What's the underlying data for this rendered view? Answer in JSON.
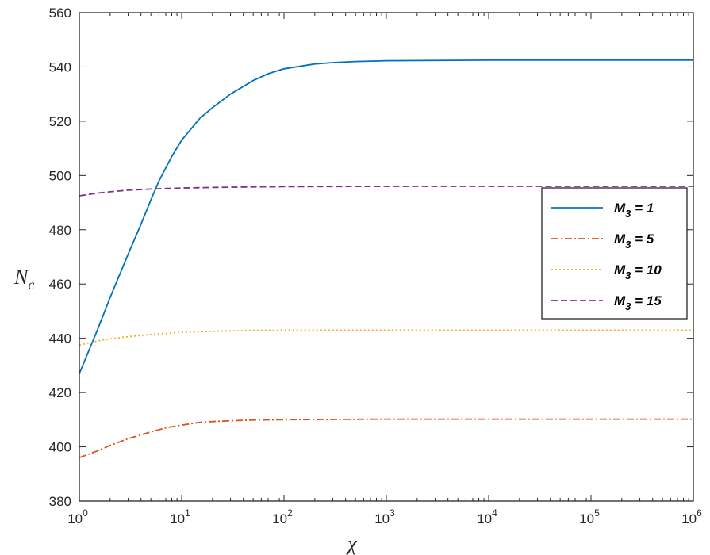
{
  "chart_data": {
    "type": "line",
    "xlabel": "χ",
    "ylabel": "N",
    "ylabel_sub": "c",
    "xscale": "log",
    "xlim": [
      1,
      1000000
    ],
    "ylim": [
      380,
      560
    ],
    "grid": false,
    "legend_position": "right",
    "x_ticks": [
      {
        "value": 1,
        "base": "10",
        "exp": "0"
      },
      {
        "value": 10,
        "base": "10",
        "exp": "1"
      },
      {
        "value": 100,
        "base": "10",
        "exp": "2"
      },
      {
        "value": 1000,
        "base": "10",
        "exp": "3"
      },
      {
        "value": 10000,
        "base": "10",
        "exp": "4"
      },
      {
        "value": 100000,
        "base": "10",
        "exp": "5"
      },
      {
        "value": 1000000,
        "base": "10",
        "exp": "6"
      }
    ],
    "y_ticks": [
      380,
      400,
      420,
      440,
      460,
      480,
      500,
      520,
      540,
      560
    ],
    "series": [
      {
        "legend_label": "M",
        "legend_sub": "3",
        "legend_rest": " = 1",
        "color": "#0072BD",
        "dash": "solid",
        "x": [
          1,
          1.5,
          2,
          3,
          4,
          5,
          6,
          8,
          10,
          15,
          20,
          30,
          50,
          70,
          100,
          200,
          300,
          500,
          1000,
          10000,
          100000,
          1000000
        ],
        "y": [
          427,
          443,
          455,
          471,
          482,
          491,
          498,
          507,
          513,
          521,
          525,
          530,
          535,
          537.5,
          539.3,
          541.1,
          541.6,
          542,
          542.3,
          542.5,
          542.5,
          542.5
        ]
      },
      {
        "legend_label": "M",
        "legend_sub": "3",
        "legend_rest": "  = 5",
        "color": "#D95319",
        "dash": "dashdot",
        "x": [
          1,
          1.5,
          2,
          3,
          5,
          7,
          10,
          15,
          20,
          30,
          50,
          100,
          1000,
          10000,
          100000,
          1000000
        ],
        "y": [
          396,
          398.5,
          400.5,
          403,
          405.5,
          407,
          408,
          409,
          409.3,
          409.6,
          409.9,
          410,
          410.2,
          410.2,
          410.2,
          410.2
        ]
      },
      {
        "legend_label": "M",
        "legend_sub": "3",
        "legend_rest": "  = 10",
        "color": "#EDB120",
        "dash": "dotted",
        "x": [
          1,
          1.5,
          2,
          3,
          5,
          10,
          20,
          50,
          100,
          1000,
          10000,
          100000,
          1000000
        ],
        "y": [
          437.5,
          439,
          439.8,
          440.6,
          441.4,
          442.2,
          442.6,
          442.9,
          443,
          443,
          443,
          443,
          443
        ]
      },
      {
        "legend_label": "M",
        "legend_sub": "3",
        "legend_rest": "  = 15",
        "color": "#7E2F8E",
        "dash": "dashed",
        "x": [
          1,
          1.5,
          2,
          3,
          5,
          10,
          20,
          50,
          100,
          1000,
          10000,
          100000,
          1000000
        ],
        "y": [
          492.5,
          493.5,
          494,
          494.6,
          495,
          495.4,
          495.6,
          495.8,
          495.9,
          496,
          496,
          496,
          496
        ]
      }
    ]
  }
}
